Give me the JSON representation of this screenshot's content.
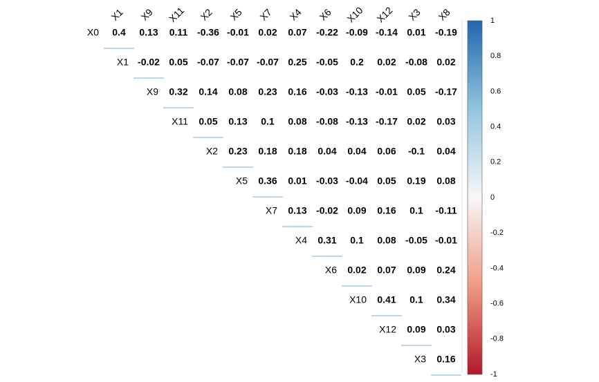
{
  "chart_data": {
    "type": "heatmap",
    "variant": "upper-triangle correlation matrix (numeric values)",
    "row_labels": [
      "X0",
      "X1",
      "X9",
      "X11",
      "X2",
      "X5",
      "X7",
      "X4",
      "X6",
      "X10",
      "X12",
      "X3"
    ],
    "col_labels": [
      "X1",
      "X9",
      "X11",
      "X2",
      "X5",
      "X7",
      "X4",
      "X6",
      "X10",
      "X12",
      "X3",
      "X8"
    ],
    "values": [
      [
        "0.4",
        "0.13",
        "0.11",
        "-0.36",
        "-0.01",
        "0.02",
        "0.07",
        "-0.22",
        "-0.09",
        "-0.14",
        "0.01",
        "-0.19"
      ],
      [
        null,
        "-0.02",
        "0.05",
        "-0.07",
        "-0.07",
        "-0.07",
        "0.25",
        "-0.05",
        "0.2",
        "0.02",
        "-0.08",
        "0.02"
      ],
      [
        null,
        null,
        "0.32",
        "0.14",
        "0.08",
        "0.23",
        "0.16",
        "-0.03",
        "-0.13",
        "-0.01",
        "0.05",
        "-0.17"
      ],
      [
        null,
        null,
        null,
        "0.05",
        "0.13",
        "0.1",
        "0.08",
        "-0.08",
        "-0.13",
        "-0.17",
        "0.02",
        "0.03"
      ],
      [
        null,
        null,
        null,
        null,
        "0.23",
        "0.18",
        "0.18",
        "0.04",
        "0.04",
        "0.06",
        "-0.1",
        "0.04"
      ],
      [
        null,
        null,
        null,
        null,
        null,
        "0.36",
        "0.01",
        "-0.03",
        "-0.04",
        "0.05",
        "0.19",
        "0.08"
      ],
      [
        null,
        null,
        null,
        null,
        null,
        null,
        "0.13",
        "-0.02",
        "0.09",
        "0.16",
        "0.1",
        "-0.11"
      ],
      [
        null,
        null,
        null,
        null,
        null,
        null,
        null,
        "0.31",
        "0.1",
        "0.08",
        "-0.05",
        "-0.01"
      ],
      [
        null,
        null,
        null,
        null,
        null,
        null,
        null,
        null,
        "0.02",
        "0.07",
        "0.09",
        "0.24"
      ],
      [
        null,
        null,
        null,
        null,
        null,
        null,
        null,
        null,
        null,
        "0.41",
        "0.1",
        "0.34"
      ],
      [
        null,
        null,
        null,
        null,
        null,
        null,
        null,
        null,
        null,
        null,
        "0.09",
        "0.03"
      ],
      [
        null,
        null,
        null,
        null,
        null,
        null,
        null,
        null,
        null,
        null,
        null,
        "0.16"
      ]
    ],
    "colorbar": {
      "range": [
        -1,
        1
      ],
      "ticks": [
        "1",
        "0.8",
        "0.6",
        "0.4",
        "0.2",
        "0",
        "-0.2",
        "-0.4",
        "-0.6",
        "-0.8",
        "-1"
      ],
      "colors": {
        "negative": "#B2182B",
        "neg_mid": "#EF9A82",
        "zero": "#F7F7F7",
        "pos_mid": "#92C5DE",
        "positive": "#2166AC"
      }
    },
    "grid": false,
    "legend_position": "right"
  }
}
